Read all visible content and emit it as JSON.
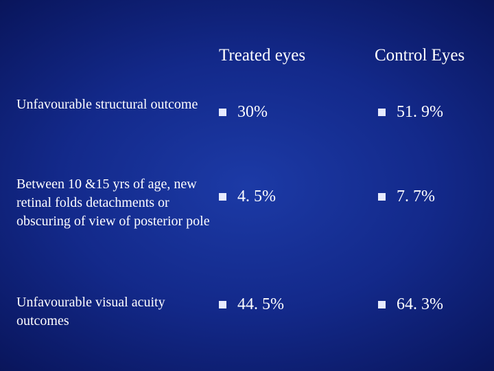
{
  "table": {
    "columns": [
      "Treated eyes",
      "Control Eyes"
    ],
    "rows": [
      {
        "label": "Unfavourable structural outcome",
        "treated": "30%",
        "control": "51. 9%"
      },
      {
        "label": "Between 10 &15 yrs of age, new retinal folds detachments or obscuring of view of posterior pole",
        "treated": "4. 5%",
        "control": "7. 7%"
      },
      {
        "label": "Unfavourable visual acuity outcomes",
        "treated": "44. 5%",
        "control": "64. 3%"
      }
    ]
  },
  "colors": {
    "background": "#13298a",
    "text": "#ffffff",
    "bullet": "#e7ebff"
  },
  "icons": {
    "bullet": "square-bullet-icon"
  }
}
